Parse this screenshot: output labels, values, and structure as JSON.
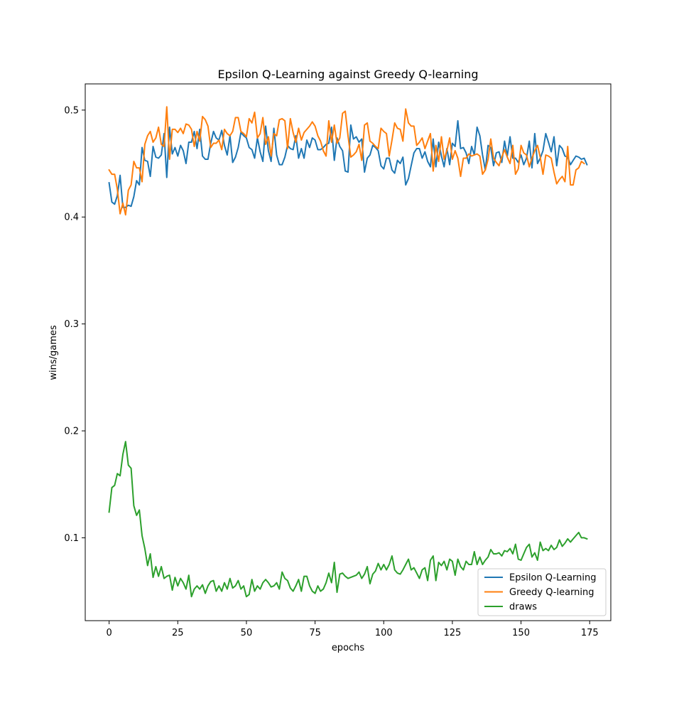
{
  "chart_data": {
    "type": "line",
    "title": "Epsilon Q-Learning against Greedy Q-learning",
    "xlabel": "epochs",
    "ylabel": "wins/games",
    "xlim": [
      -8.7,
      182.7
    ],
    "ylim": [
      0.0225,
      0.5245
    ],
    "xticks": [
      0,
      25,
      50,
      75,
      100,
      125,
      150,
      175
    ],
    "yticks": [
      0.1,
      0.2,
      0.3,
      0.4,
      0.5
    ],
    "xtick_labels": [
      "0",
      "25",
      "50",
      "75",
      "100",
      "125",
      "150",
      "175"
    ],
    "ytick_labels": [
      "0.1",
      "0.2",
      "0.3",
      "0.4",
      "0.5"
    ],
    "legend_position": "bottom-right",
    "series": [
      {
        "name": "Epsilon Q-Learning",
        "color": "#1f77b4",
        "values": [
          0.432,
          0.414,
          0.412,
          0.42,
          0.439,
          0.409,
          0.409,
          0.411,
          0.41,
          0.419,
          0.434,
          0.43,
          0.465,
          0.453,
          0.452,
          0.438,
          0.466,
          0.456,
          0.455,
          0.458,
          0.478,
          0.437,
          0.484,
          0.459,
          0.465,
          0.457,
          0.467,
          0.462,
          0.45,
          0.47,
          0.47,
          0.48,
          0.464,
          0.482,
          0.457,
          0.454,
          0.454,
          0.469,
          0.48,
          0.474,
          0.472,
          0.481,
          0.467,
          0.458,
          0.476,
          0.451,
          0.456,
          0.465,
          0.479,
          0.476,
          0.474,
          0.465,
          0.463,
          0.455,
          0.474,
          0.461,
          0.452,
          0.485,
          0.462,
          0.452,
          0.483,
          0.458,
          0.449,
          0.449,
          0.456,
          0.467,
          0.464,
          0.463,
          0.476,
          0.455,
          0.464,
          0.455,
          0.472,
          0.465,
          0.474,
          0.472,
          0.463,
          0.463,
          0.465,
          0.468,
          0.469,
          0.484,
          0.453,
          0.474,
          0.466,
          0.462,
          0.443,
          0.442,
          0.486,
          0.473,
          0.475,
          0.47,
          0.473,
          0.442,
          0.455,
          0.458,
          0.467,
          0.465,
          0.462,
          0.448,
          0.445,
          0.455,
          0.455,
          0.444,
          0.441,
          0.453,
          0.45,
          0.456,
          0.43,
          0.436,
          0.448,
          0.46,
          0.464,
          0.464,
          0.455,
          0.461,
          0.452,
          0.447,
          0.473,
          0.447,
          0.47,
          0.457,
          0.447,
          0.464,
          0.449,
          0.469,
          0.466,
          0.49,
          0.464,
          0.465,
          0.46,
          0.45,
          0.466,
          0.458,
          0.484,
          0.476,
          0.458,
          0.444,
          0.467,
          0.465,
          0.448,
          0.46,
          0.461,
          0.451,
          0.471,
          0.457,
          0.475,
          0.455,
          0.455,
          0.451,
          0.458,
          0.449,
          0.455,
          0.471,
          0.446,
          0.478,
          0.45,
          0.455,
          0.462,
          0.478,
          0.47,
          0.461,
          0.475,
          0.448,
          0.467,
          0.464,
          0.457,
          0.456,
          0.449,
          0.453,
          0.457,
          0.456,
          0.454,
          0.455,
          0.449
        ]
      },
      {
        "name": "Greedy Q-learning",
        "color": "#ff7f0e",
        "values": [
          0.444,
          0.44,
          0.44,
          0.426,
          0.403,
          0.413,
          0.402,
          0.425,
          0.43,
          0.452,
          0.446,
          0.446,
          0.433,
          0.468,
          0.476,
          0.48,
          0.47,
          0.474,
          0.484,
          0.468,
          0.466,
          0.503,
          0.454,
          0.482,
          0.482,
          0.479,
          0.483,
          0.478,
          0.487,
          0.486,
          0.482,
          0.466,
          0.48,
          0.471,
          0.494,
          0.491,
          0.485,
          0.465,
          0.469,
          0.469,
          0.472,
          0.463,
          0.482,
          0.478,
          0.476,
          0.48,
          0.493,
          0.493,
          0.48,
          0.478,
          0.475,
          0.492,
          0.488,
          0.498,
          0.474,
          0.478,
          0.493,
          0.468,
          0.475,
          0.457,
          0.478,
          0.476,
          0.491,
          0.492,
          0.49,
          0.464,
          0.492,
          0.479,
          0.47,
          0.483,
          0.472,
          0.479,
          0.482,
          0.485,
          0.489,
          0.485,
          0.476,
          0.471,
          0.462,
          0.457,
          0.49,
          0.47,
          0.486,
          0.469,
          0.474,
          0.497,
          0.499,
          0.476,
          0.456,
          0.458,
          0.461,
          0.468,
          0.453,
          0.486,
          0.488,
          0.471,
          0.469,
          0.466,
          0.464,
          0.483,
          0.48,
          0.478,
          0.457,
          0.472,
          0.488,
          0.483,
          0.482,
          0.471,
          0.501,
          0.488,
          0.485,
          0.485,
          0.467,
          0.47,
          0.474,
          0.464,
          0.471,
          0.478,
          0.443,
          0.467,
          0.452,
          0.475,
          0.454,
          0.462,
          0.474,
          0.454,
          0.462,
          0.455,
          0.438,
          0.455,
          0.455,
          0.459,
          0.457,
          0.458,
          0.459,
          0.457,
          0.44,
          0.444,
          0.454,
          0.473,
          0.455,
          0.451,
          0.448,
          0.456,
          0.463,
          0.456,
          0.45,
          0.467,
          0.44,
          0.445,
          0.467,
          0.46,
          0.458,
          0.447,
          0.455,
          0.462,
          0.467,
          0.456,
          0.44,
          0.458,
          0.457,
          0.455,
          0.442,
          0.431,
          0.435,
          0.438,
          0.433,
          0.466,
          0.43,
          0.43,
          0.444,
          0.446,
          0.452,
          0.45
        ]
      },
      {
        "name": "draws",
        "color": "#2ca02c",
        "values": [
          0.124,
          0.147,
          0.149,
          0.16,
          0.158,
          0.178,
          0.19,
          0.168,
          0.165,
          0.13,
          0.121,
          0.126,
          0.102,
          0.09,
          0.074,
          0.085,
          0.063,
          0.073,
          0.064,
          0.073,
          0.062,
          0.064,
          0.065,
          0.051,
          0.063,
          0.055,
          0.062,
          0.058,
          0.052,
          0.065,
          0.045,
          0.052,
          0.055,
          0.052,
          0.056,
          0.048,
          0.055,
          0.059,
          0.06,
          0.05,
          0.055,
          0.05,
          0.058,
          0.052,
          0.062,
          0.053,
          0.055,
          0.06,
          0.052,
          0.055,
          0.045,
          0.047,
          0.061,
          0.05,
          0.055,
          0.052,
          0.058,
          0.061,
          0.058,
          0.054,
          0.055,
          0.058,
          0.052,
          0.068,
          0.062,
          0.06,
          0.053,
          0.05,
          0.055,
          0.061,
          0.05,
          0.064,
          0.064,
          0.055,
          0.05,
          0.048,
          0.055,
          0.05,
          0.052,
          0.058,
          0.067,
          0.058,
          0.077,
          0.049,
          0.066,
          0.067,
          0.064,
          0.062,
          0.063,
          0.064,
          0.065,
          0.068,
          0.062,
          0.066,
          0.073,
          0.057,
          0.066,
          0.069,
          0.076,
          0.07,
          0.075,
          0.07,
          0.075,
          0.083,
          0.07,
          0.067,
          0.066,
          0.07,
          0.075,
          0.08,
          0.07,
          0.072,
          0.067,
          0.062,
          0.07,
          0.072,
          0.06,
          0.079,
          0.083,
          0.06,
          0.077,
          0.074,
          0.078,
          0.07,
          0.08,
          0.078,
          0.065,
          0.08,
          0.073,
          0.07,
          0.078,
          0.075,
          0.075,
          0.087,
          0.075,
          0.082,
          0.075,
          0.079,
          0.082,
          0.089,
          0.085,
          0.085,
          0.086,
          0.083,
          0.088,
          0.087,
          0.09,
          0.085,
          0.094,
          0.08,
          0.079,
          0.085,
          0.091,
          0.094,
          0.082,
          0.086,
          0.079,
          0.096,
          0.088,
          0.09,
          0.088,
          0.093,
          0.089,
          0.091,
          0.098,
          0.092,
          0.095,
          0.099,
          0.096,
          0.099,
          0.102,
          0.105,
          0.1,
          0.1,
          0.099
        ]
      }
    ]
  }
}
